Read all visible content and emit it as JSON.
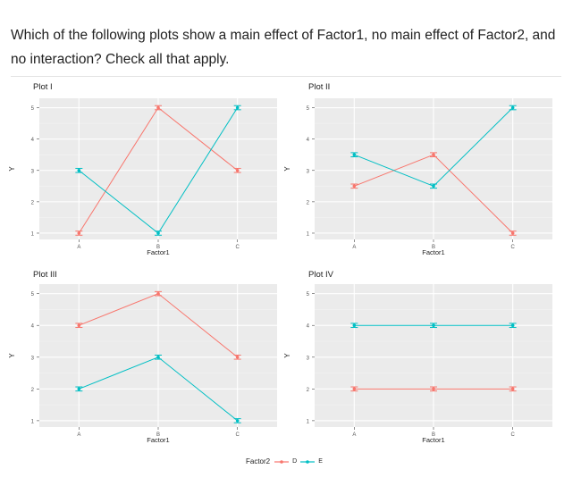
{
  "question": "Which of the following plots show a main effect of Factor1, no main effect of Factor2, and no interaction? Check all that apply.",
  "colors": {
    "D": "#f8766d",
    "E": "#00bfc4",
    "panel": "#ebebeb",
    "grid": "#ffffff"
  },
  "legend": {
    "title": "Factor2",
    "keys": [
      "D",
      "E"
    ]
  },
  "chart_data": [
    {
      "type": "line",
      "title": "Plot I",
      "xlabel": "Factor1",
      "ylabel": "Y",
      "categories": [
        "A",
        "B",
        "C"
      ],
      "yticks": [
        1,
        2,
        3,
        4,
        5
      ],
      "ylim": [
        0.8,
        5.3
      ],
      "series": [
        {
          "name": "D",
          "values": [
            1,
            5,
            3
          ]
        },
        {
          "name": "E",
          "values": [
            3,
            1,
            5
          ]
        }
      ]
    },
    {
      "type": "line",
      "title": "Plot II",
      "xlabel": "Factor1",
      "ylabel": "Y",
      "categories": [
        "A",
        "B",
        "C"
      ],
      "yticks": [
        1,
        2,
        3,
        4,
        5
      ],
      "ylim": [
        0.8,
        5.3
      ],
      "series": [
        {
          "name": "D",
          "values": [
            2.5,
            3.5,
            1
          ]
        },
        {
          "name": "E",
          "values": [
            3.5,
            2.5,
            5
          ]
        }
      ]
    },
    {
      "type": "line",
      "title": "Plot III",
      "xlabel": "Factor1",
      "ylabel": "Y",
      "categories": [
        "A",
        "B",
        "C"
      ],
      "yticks": [
        1,
        2,
        3,
        4,
        5
      ],
      "ylim": [
        0.8,
        5.3
      ],
      "series": [
        {
          "name": "D",
          "values": [
            4,
            5,
            3
          ]
        },
        {
          "name": "E",
          "values": [
            2,
            3,
            1
          ]
        }
      ]
    },
    {
      "type": "line",
      "title": "Plot IV",
      "xlabel": "Factor1",
      "ylabel": "Y",
      "categories": [
        "A",
        "B",
        "C"
      ],
      "yticks": [
        1,
        2,
        3,
        4,
        5
      ],
      "ylim": [
        0.8,
        5.3
      ],
      "series": [
        {
          "name": "D",
          "values": [
            2,
            2,
            2
          ]
        },
        {
          "name": "E",
          "values": [
            4,
            4,
            4
          ]
        }
      ]
    }
  ]
}
